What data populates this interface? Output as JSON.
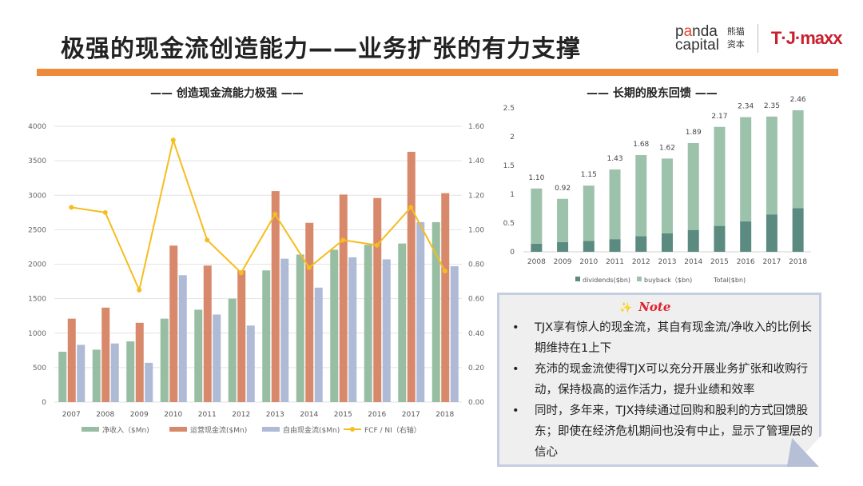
{
  "header": {
    "title": "极强的现金流创造能力——业务扩张的有力支撑",
    "logo_panda": "panda",
    "logo_capital": "capital",
    "logo_cn1": "熊猫",
    "logo_cn2": "资本",
    "logo_tjmaxx": "T·J·maxx"
  },
  "colors": {
    "accent": "#ee8a3a",
    "net_income": "#97bea3",
    "ocf": "#d9896b",
    "fcf": "#aebad6",
    "ratio": "#f5bd1e",
    "dividends": "#5b8a80",
    "buyback": "#9dc2ab"
  },
  "chart_data": [
    {
      "type": "bar+line",
      "title": "—— 创造现金流能力极强 ——",
      "categories": [
        "2007",
        "2008",
        "2009",
        "2010",
        "2011",
        "2012",
        "2013",
        "2014",
        "2015",
        "2016",
        "2017",
        "2018"
      ],
      "ylim": [
        0,
        4000
      ],
      "yticks": [
        "0",
        "500",
        "1000",
        "1500",
        "2000",
        "2500",
        "3000",
        "3500",
        "4000"
      ],
      "y2lim": [
        0,
        1.6
      ],
      "y2ticks": [
        "0.00",
        "0.20",
        "0.40",
        "0.60",
        "0.80",
        "1.00",
        "1.20",
        "1.40",
        "1.60"
      ],
      "grid": true,
      "legend": "bottom",
      "series": [
        {
          "name": "净收入（$Mn)",
          "type": "bar",
          "values": [
            730,
            760,
            880,
            1210,
            1340,
            1500,
            1910,
            2140,
            2210,
            2280,
            2300,
            2610
          ]
        },
        {
          "name": "运营现金流($Mn)",
          "type": "bar",
          "values": [
            1210,
            1370,
            1150,
            2270,
            1980,
            1910,
            3060,
            2600,
            3010,
            2960,
            3630,
            3030
          ]
        },
        {
          "name": "自由现金流($Mn)",
          "type": "bar",
          "values": [
            830,
            850,
            570,
            1840,
            1270,
            1110,
            2080,
            1660,
            2100,
            2070,
            2610,
            1970
          ]
        },
        {
          "name": "FCF / NI（右轴）",
          "type": "line",
          "axis": "right",
          "values": [
            1.13,
            1.1,
            0.65,
            1.52,
            0.94,
            0.75,
            1.09,
            0.78,
            0.94,
            0.91,
            1.13,
            0.76
          ]
        }
      ]
    },
    {
      "type": "stacked-bar",
      "title": "—— 长期的股东回馈 ——",
      "categories": [
        "2008",
        "2009",
        "2010",
        "2011",
        "2012",
        "2013",
        "2014",
        "2015",
        "2016",
        "2017",
        "2018"
      ],
      "ylim": [
        0,
        2.5
      ],
      "yticks": [
        "0",
        "0.5",
        "1",
        "1.5",
        "2",
        "2.5"
      ],
      "grid": false,
      "legend": "bottom",
      "totals": [
        "1.10",
        "0.92",
        "1.15",
        "1.43",
        "1.68",
        "1.62",
        "1.89",
        "2.17",
        "2.34",
        "2.35",
        "2.46"
      ],
      "total_label": "Total($bn)",
      "series": [
        {
          "name": "dividends($bn)",
          "values": [
            0.14,
            0.17,
            0.19,
            0.22,
            0.27,
            0.32,
            0.38,
            0.45,
            0.53,
            0.65,
            0.76
          ]
        },
        {
          "name": "buyback（$bn)",
          "values": [
            0.96,
            0.75,
            0.96,
            1.21,
            1.41,
            1.3,
            1.51,
            1.72,
            1.81,
            1.7,
            1.7
          ]
        }
      ]
    }
  ],
  "note": {
    "star": "✨",
    "heading": "Note",
    "items": [
      "TJX享有惊人的现金流，其自有现金流/净收入的比例长期维持在1上下",
      "充沛的现金流使得TJX可以充分开展业务扩张和收购行动，保持极高的运作活力，提升业绩和效率",
      "同时，多年来，TJX持续通过回购和股利的方式回馈股东；即使在经济危机期间也没有中止，显示了管理层的信心"
    ]
  }
}
